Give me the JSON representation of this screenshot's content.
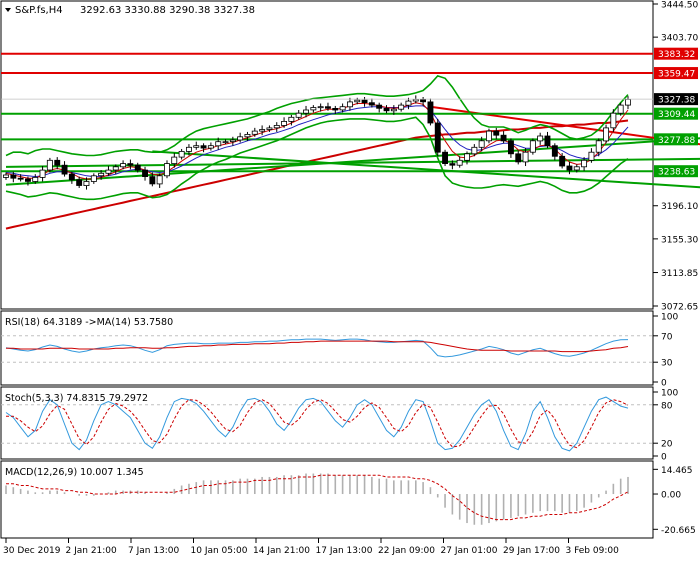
{
  "header": {
    "symbol": "S&P.fs,H4",
    "ohlc": "3292.63 3330.88 3290.38 3327.38"
  },
  "colors": {
    "frame": "#000000",
    "bullish": "#2e7d32",
    "bearish": "#1b5e20",
    "support_resistance": "#e00000",
    "bollinger": "#00a000",
    "ma_fast": "#cc0000",
    "ma_slow": "#2020c0",
    "rsi": "#3399dd",
    "signal": "#cc0000",
    "macd_hist": "#b0b0b0",
    "grid_dash": "#c0c0c0"
  },
  "chart_data": [
    {
      "type": "candlestick",
      "name": "price",
      "ylim": [
        3072.65,
        3444.5
      ],
      "y_ticks": [
        {
          "v": 3444.5,
          "label": "3444.50"
        },
        {
          "v": 3403.7,
          "label": "3403.70"
        },
        {
          "v": 3196.1,
          "label": "3196.10"
        },
        {
          "v": 3155.3,
          "label": "3155.30"
        },
        {
          "v": 3113.85,
          "label": "3113.85"
        },
        {
          "v": 3072.65,
          "label": "3072.65"
        }
      ],
      "x_ticks": [
        "30 Dec 2019",
        "2 Jan 21:00",
        "7 Jan 13:00",
        "10 Jan 05:00",
        "14 Jan 21:00",
        "17 Jan 13:00",
        "22 Jan 09:00",
        "27 Jan 01:00",
        "29 Jan 17:00",
        "3 Feb 09:00"
      ],
      "levels": [
        {
          "v": 3383.32,
          "label": "3383.32",
          "kind": "resistance"
        },
        {
          "v": 3359.47,
          "label": "3359.47",
          "kind": "resistance"
        },
        {
          "v": 3309.44,
          "label": "3309.44",
          "kind": "support"
        },
        {
          "v": 3277.88,
          "label": "3277.88",
          "kind": "support"
        },
        {
          "v": 3238.63,
          "label": "3238.63",
          "kind": "support"
        }
      ],
      "current_price": {
        "v": 3327.38,
        "label": "3327.38"
      },
      "closes": [
        3234,
        3230,
        3229,
        3226,
        3231,
        3240,
        3252,
        3246,
        3235,
        3228,
        3221,
        3226,
        3233,
        3236,
        3240,
        3244,
        3248,
        3246,
        3240,
        3232,
        3223,
        3233,
        3248,
        3256,
        3263,
        3268,
        3270,
        3267,
        3270,
        3275,
        3275,
        3277,
        3281,
        3284,
        3288,
        3290,
        3292,
        3295,
        3300,
        3305,
        3310,
        3314,
        3317,
        3318,
        3316,
        3314,
        3318,
        3324,
        3326,
        3323,
        3320,
        3316,
        3313,
        3315,
        3320,
        3325,
        3327,
        3324,
        3298,
        3262,
        3248,
        3246,
        3252,
        3260,
        3268,
        3276,
        3288,
        3283,
        3276,
        3260,
        3250,
        3262,
        3276,
        3282,
        3270,
        3257,
        3245,
        3240,
        3244,
        3252,
        3262,
        3276,
        3292,
        3310,
        3320,
        3327
      ],
      "bb_upper": [
        3258,
        3262,
        3262,
        3260,
        3264,
        3266,
        3266,
        3264,
        3262,
        3260,
        3259,
        3258,
        3258,
        3259,
        3261,
        3263,
        3264,
        3265,
        3265,
        3263,
        3262,
        3262,
        3265,
        3270,
        3277,
        3283,
        3288,
        3291,
        3293,
        3295,
        3297,
        3299,
        3301,
        3303,
        3306,
        3309,
        3312,
        3316,
        3319,
        3322,
        3324,
        3326,
        3328,
        3329,
        3330,
        3331,
        3332,
        3333,
        3334,
        3334,
        3333,
        3332,
        3331,
        3331,
        3332,
        3333,
        3335,
        3338,
        3346,
        3356,
        3353,
        3342,
        3328,
        3315,
        3304,
        3296,
        3293,
        3293,
        3293,
        3290,
        3286,
        3289,
        3293,
        3296,
        3294,
        3290,
        3285,
        3280,
        3278,
        3280,
        3283,
        3290,
        3300,
        3312,
        3323,
        3333
      ],
      "bb_lower": [
        3214,
        3212,
        3210,
        3207,
        3208,
        3210,
        3212,
        3211,
        3209,
        3207,
        3205,
        3204,
        3204,
        3205,
        3207,
        3209,
        3211,
        3212,
        3212,
        3209,
        3206,
        3207,
        3210,
        3216,
        3223,
        3229,
        3236,
        3241,
        3246,
        3250,
        3253,
        3257,
        3261,
        3264,
        3267,
        3270,
        3273,
        3276,
        3280,
        3284,
        3288,
        3292,
        3295,
        3298,
        3300,
        3301,
        3302,
        3303,
        3303,
        3303,
        3302,
        3301,
        3300,
        3300,
        3301,
        3303,
        3305,
        3296,
        3280,
        3255,
        3233,
        3224,
        3221,
        3219,
        3218,
        3218,
        3219,
        3221,
        3222,
        3221,
        3220,
        3222,
        3224,
        3226,
        3224,
        3220,
        3215,
        3212,
        3212,
        3214,
        3218,
        3224,
        3232,
        3240,
        3248,
        3254
      ],
      "ma_fast": [
        3236,
        3234,
        3232,
        3230,
        3230,
        3234,
        3240,
        3242,
        3240,
        3236,
        3231,
        3229,
        3229,
        3231,
        3234,
        3238,
        3242,
        3244,
        3243,
        3240,
        3235,
        3234,
        3238,
        3244,
        3251,
        3257,
        3262,
        3265,
        3267,
        3270,
        3272,
        3274,
        3277,
        3280,
        3283,
        3286,
        3289,
        3291,
        3294,
        3298,
        3302,
        3306,
        3310,
        3313,
        3315,
        3315,
        3316,
        3319,
        3322,
        3322,
        3321,
        3319,
        3317,
        3316,
        3317,
        3320,
        3323,
        3321,
        3311,
        3292,
        3276,
        3263,
        3256,
        3255,
        3258,
        3264,
        3271,
        3276,
        3277,
        3273,
        3265,
        3262,
        3265,
        3270,
        3271,
        3266,
        3257,
        3250,
        3247,
        3248,
        3253,
        3262,
        3274,
        3288,
        3302,
        3314
      ],
      "ma_slow": [
        3237,
        3236,
        3234,
        3233,
        3232,
        3233,
        3236,
        3238,
        3238,
        3237,
        3235,
        3233,
        3232,
        3232,
        3233,
        3235,
        3238,
        3240,
        3241,
        3240,
        3238,
        3237,
        3238,
        3241,
        3245,
        3250,
        3255,
        3259,
        3262,
        3265,
        3268,
        3270,
        3273,
        3276,
        3278,
        3281,
        3284,
        3286,
        3289,
        3292,
        3296,
        3299,
        3302,
        3305,
        3308,
        3310,
        3312,
        3314,
        3316,
        3317,
        3318,
        3318,
        3317,
        3317,
        3317,
        3318,
        3319,
        3319,
        3314,
        3302,
        3290,
        3279,
        3271,
        3266,
        3264,
        3265,
        3268,
        3271,
        3273,
        3273,
        3270,
        3267,
        3267,
        3269,
        3270,
        3268,
        3264,
        3259,
        3256,
        3254,
        3255,
        3259,
        3265,
        3273,
        3283,
        3293
      ],
      "ma_long": [
        3168,
        3170,
        3172,
        3174,
        3176,
        3178,
        3180,
        3182,
        3184,
        3186,
        3188,
        3190,
        3192,
        3194,
        3196,
        3198,
        3200,
        3202,
        3204,
        3206,
        3208,
        3210,
        3212,
        3214,
        3216,
        3218,
        3220,
        3222,
        3224,
        3226,
        3228,
        3230,
        3232,
        3234,
        3236,
        3238,
        3240,
        3242,
        3244,
        3246,
        3248,
        3250,
        3252,
        3254,
        3256,
        3258,
        3260,
        3262,
        3264,
        3266,
        3268,
        3270,
        3272,
        3274,
        3276,
        3278,
        3280,
        3281,
        3282,
        3283,
        3284,
        3284,
        3285,
        3286,
        3286,
        3287,
        3288,
        3288,
        3289,
        3290,
        3290,
        3291,
        3292,
        3292,
        3293,
        3294,
        3294,
        3295,
        3296,
        3296,
        3297,
        3298,
        3298,
        3299,
        3300,
        3301
      ],
      "trendlines": [
        {
          "kind": "resistance",
          "from": [
            58,
            3318
          ],
          "to": [
            93,
            3270
          ]
        },
        {
          "kind": "support",
          "from": [
            0,
            3222
          ],
          "to": [
            93,
            3280
          ]
        },
        {
          "kind": "support",
          "from": [
            0,
            3244
          ],
          "to": [
            93,
            3254
          ]
        },
        {
          "kind": "support",
          "from": [
            20,
            3263
          ],
          "to": [
            93,
            3218
          ]
        }
      ]
    },
    {
      "type": "line",
      "name": "RSI(18)",
      "label": "RSI(18) 64.3189 ->MA(14) 53.7580",
      "ylim": [
        0,
        100
      ],
      "y_ticks": [
        {
          "v": 100,
          "label": "100"
        },
        {
          "v": 70,
          "label": "70"
        },
        {
          "v": 30,
          "label": "30"
        },
        {
          "v": 0,
          "label": "0"
        }
      ],
      "levels": [
        70,
        30
      ],
      "values": [
        52,
        50,
        48,
        47,
        49,
        53,
        56,
        54,
        50,
        47,
        45,
        47,
        50,
        52,
        53,
        55,
        56,
        55,
        52,
        48,
        45,
        49,
        55,
        57,
        58,
        59,
        59,
        58,
        58,
        59,
        59,
        59,
        60,
        60,
        61,
        61,
        62,
        62,
        63,
        64,
        64,
        65,
        65,
        65,
        64,
        63,
        64,
        65,
        65,
        64,
        62,
        61,
        60,
        60,
        61,
        62,
        63,
        62,
        52,
        40,
        38,
        39,
        41,
        44,
        47,
        50,
        54,
        52,
        49,
        44,
        41,
        45,
        49,
        51,
        47,
        43,
        40,
        39,
        41,
        44,
        48,
        53,
        58,
        62,
        64,
        64.3
      ],
      "ma": [
        51,
        51,
        50,
        50,
        50,
        50,
        51,
        51,
        51,
        51,
        50,
        50,
        50,
        50,
        50,
        51,
        51,
        52,
        52,
        52,
        51,
        51,
        52,
        52,
        53,
        54,
        54,
        55,
        55,
        56,
        56,
        57,
        57,
        57,
        58,
        58,
        58,
        59,
        59,
        60,
        60,
        61,
        61,
        62,
        62,
        62,
        62,
        62,
        62,
        62,
        62,
        62,
        62,
        61,
        61,
        61,
        61,
        61,
        60,
        58,
        56,
        54,
        52,
        50,
        49,
        48,
        48,
        48,
        48,
        47,
        47,
        47,
        47,
        47,
        47,
        47,
        46,
        46,
        46,
        46,
        47,
        48,
        49,
        51,
        52,
        53.8
      ]
    },
    {
      "type": "line",
      "name": "Stoch(5,3,3)",
      "label": "Stoch(5,3,3) 74.8315 79.2972",
      "ylim": [
        0,
        100
      ],
      "y_ticks": [
        {
          "v": 100,
          "label": "100"
        },
        {
          "v": 80,
          "label": "80"
        },
        {
          "v": 20,
          "label": "20"
        },
        {
          "v": 0,
          "label": "0"
        }
      ],
      "levels": [
        80,
        20
      ],
      "values": [
        68,
        60,
        45,
        30,
        40,
        70,
        88,
        80,
        50,
        20,
        10,
        25,
        55,
        80,
        85,
        80,
        70,
        60,
        40,
        20,
        12,
        30,
        60,
        85,
        90,
        88,
        82,
        70,
        55,
        40,
        30,
        45,
        70,
        88,
        90,
        85,
        70,
        50,
        40,
        55,
        75,
        88,
        90,
        85,
        70,
        55,
        45,
        60,
        80,
        88,
        80,
        60,
        40,
        30,
        45,
        70,
        88,
        85,
        55,
        20,
        10,
        12,
        25,
        45,
        65,
        80,
        88,
        70,
        40,
        15,
        10,
        35,
        70,
        85,
        60,
        30,
        12,
        8,
        20,
        45,
        70,
        88,
        92,
        85,
        78,
        74.8
      ],
      "signal": [
        62,
        62,
        55,
        45,
        38,
        47,
        66,
        79,
        73,
        50,
        27,
        18,
        30,
        53,
        73,
        82,
        78,
        70,
        57,
        40,
        24,
        21,
        34,
        58,
        78,
        88,
        87,
        80,
        69,
        55,
        42,
        38,
        48,
        68,
        83,
        88,
        82,
        68,
        53,
        48,
        57,
        73,
        84,
        88,
        82,
        70,
        57,
        53,
        62,
        76,
        83,
        76,
        60,
        43,
        38,
        48,
        68,
        81,
        76,
        53,
        28,
        14,
        16,
        27,
        45,
        63,
        78,
        79,
        66,
        42,
        22,
        20,
        38,
        63,
        72,
        58,
        34,
        17,
        13,
        24,
        45,
        68,
        83,
        88,
        85,
        79.3
      ]
    },
    {
      "type": "bar",
      "name": "MACD(12,26,9)",
      "label": "MACD(12,26,9) 10.007 1.345",
      "ylim": [
        -24,
        17
      ],
      "y_ticks": [
        {
          "v": 14.465,
          "label": "14.465"
        },
        {
          "v": 0,
          "label": "0.00"
        },
        {
          "v": -20.665,
          "label": "-20.665"
        }
      ],
      "values": [
        5,
        4,
        3,
        2,
        1,
        1,
        2,
        2,
        1,
        0,
        -1,
        -1,
        -1,
        0,
        1,
        2,
        2,
        2,
        2,
        1,
        0,
        0,
        1,
        3,
        5,
        6,
        7,
        8,
        8,
        8,
        8,
        8,
        9,
        9,
        9,
        10,
        10,
        10,
        11,
        11,
        11,
        12,
        12,
        12,
        12,
        11,
        11,
        11,
        11,
        11,
        10,
        9,
        9,
        8,
        8,
        8,
        8,
        7,
        4,
        -2,
        -8,
        -12,
        -15,
        -17,
        -18,
        -18,
        -17,
        -16,
        -15,
        -14,
        -13,
        -12,
        -11,
        -10,
        -10,
        -10,
        -11,
        -11,
        -10,
        -8,
        -5,
        -2,
        2,
        6,
        9,
        10
      ],
      "signal": [
        6,
        6,
        5,
        5,
        4,
        3,
        3,
        3,
        2,
        2,
        1,
        1,
        0,
        0,
        0,
        0,
        1,
        1,
        1,
        1,
        1,
        1,
        1,
        1,
        2,
        3,
        4,
        5,
        5,
        6,
        6,
        7,
        7,
        7,
        8,
        8,
        8,
        9,
        9,
        9,
        10,
        10,
        10,
        11,
        11,
        11,
        11,
        11,
        11,
        11,
        11,
        11,
        10,
        10,
        10,
        10,
        9,
        9,
        8,
        6,
        3,
        -1,
        -4,
        -8,
        -11,
        -13,
        -14,
        -15,
        -15,
        -15,
        -14,
        -14,
        -13,
        -13,
        -12,
        -12,
        -12,
        -11,
        -11,
        -10,
        -9,
        -8,
        -6,
        -3,
        -1,
        1.3
      ]
    }
  ]
}
